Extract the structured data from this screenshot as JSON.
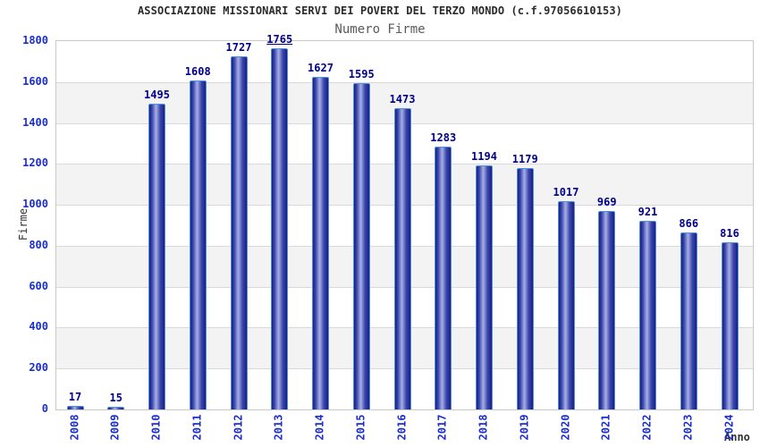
{
  "chart_data": {
    "type": "bar",
    "title": "ASSOCIAZIONE MISSIONARI SERVI DEI POVERI DEL TERZO MONDO (c.f.97056610153)",
    "subtitle": "Numero Firme",
    "xlabel": "Anno",
    "ylabel": "Firme",
    "categories": [
      "2008",
      "2009",
      "2010",
      "2011",
      "2012",
      "2013",
      "2014",
      "2015",
      "2016",
      "2017",
      "2018",
      "2019",
      "2020",
      "2021",
      "2022",
      "2023",
      "2024"
    ],
    "values": [
      17,
      15,
      1495,
      1608,
      1727,
      1765,
      1627,
      1595,
      1473,
      1283,
      1194,
      1179,
      1017,
      969,
      921,
      866,
      816
    ],
    "ylim": [
      0,
      1800
    ],
    "ytick_step": 200,
    "grid": true,
    "legend_position": "none",
    "max_value_label_underlined": true,
    "colors": {
      "title_text": "#2b2b2b",
      "subtitle_text": "#5a5a5a",
      "axis_tick_text": "#1a2ed0",
      "value_label_text": "#00008b",
      "axis_name_text": "#333333",
      "bar_dark": "#1a1f7e",
      "bar_mid": "#3a46ae",
      "bar_highlight": "#a8b1e4",
      "bar_border": "#4d90e0",
      "gridline": "#d9d9d9",
      "band_fill": "#f3f3f3",
      "plot_border": "#c9c9c9",
      "background": "#ffffff"
    }
  }
}
